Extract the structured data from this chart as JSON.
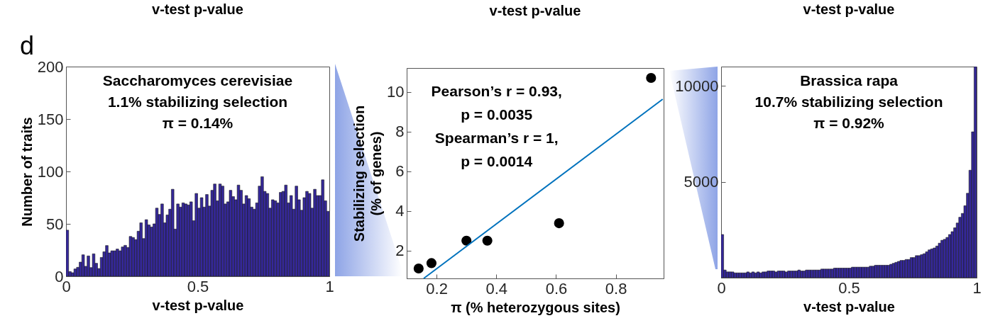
{
  "chart_data": [
    {
      "type": "histogram",
      "title": "v-test p-value",
      "subtitle": "d",
      "xlabel": "v-test p-value",
      "ylabel": "Number of traits",
      "color": "#35289a",
      "annotations": [
        "Saccharomyces cerevisiae",
        "1.1% stabilizing selection",
        "π = 0.14%"
      ],
      "bins": [
        0,
        0.01,
        0.02,
        0.03,
        0.04,
        0.05,
        0.06,
        0.07,
        0.08,
        0.09,
        0.1,
        0.11,
        0.12,
        0.13,
        0.14,
        0.15,
        0.16,
        0.17,
        0.18,
        0.19,
        0.2,
        0.21,
        0.22,
        0.23,
        0.24,
        0.25,
        0.26,
        0.27,
        0.28,
        0.29,
        0.3,
        0.31,
        0.32,
        0.33,
        0.34,
        0.35,
        0.36,
        0.37,
        0.38,
        0.39,
        0.4,
        0.41,
        0.42,
        0.43,
        0.44,
        0.45,
        0.46,
        0.47,
        0.48,
        0.49,
        0.5,
        0.51,
        0.52,
        0.53,
        0.54,
        0.55,
        0.56,
        0.57,
        0.58,
        0.59,
        0.6,
        0.61,
        0.62,
        0.63,
        0.64,
        0.65,
        0.66,
        0.67,
        0.68,
        0.69,
        0.7,
        0.71,
        0.72,
        0.73,
        0.74,
        0.75,
        0.76,
        0.77,
        0.78,
        0.79,
        0.8,
        0.81,
        0.82,
        0.83,
        0.84,
        0.85,
        0.86,
        0.87,
        0.88,
        0.89,
        0.9,
        0.91,
        0.92,
        0.93,
        0.94,
        0.95,
        0.96,
        0.97,
        0.98,
        0.99,
        1
      ],
      "values": [
        44,
        4.5,
        3.4,
        7,
        8.6,
        13.5,
        20.5,
        9.5,
        19.4,
        8.3,
        21.4,
        12.4,
        7.4,
        18,
        23.4,
        29.3,
        22.3,
        24.3,
        24.3,
        26,
        24.3,
        28,
        29.5,
        27.5,
        38,
        37,
        35,
        43,
        51,
        36,
        54,
        49,
        47,
        50,
        65,
        59,
        69,
        51,
        58.5,
        64,
        83,
        45,
        69,
        66,
        70,
        69,
        68,
        71,
        53,
        79,
        65,
        75,
        66,
        78,
        67,
        82,
        88,
        72,
        88,
        86,
        69,
        71,
        82,
        76,
        73,
        87,
        82,
        69,
        77,
        74,
        66,
        64,
        70,
        86,
        95,
        81,
        79,
        65,
        73,
        72,
        70,
        80,
        81,
        87,
        70,
        77,
        64,
        86,
        73,
        63,
        75,
        81,
        79,
        65,
        83,
        77,
        77,
        92,
        72,
        62
      ],
      "xlim": [
        0,
        1
      ],
      "xticks": [
        0,
        0.5,
        1
      ],
      "ylim": [
        0,
        200
      ],
      "yticks": [
        0,
        50,
        100,
        150,
        200
      ],
      "grid": false
    },
    {
      "type": "scatter",
      "title": "v-test p-value",
      "xlabel": "π (% heterozygous sites)",
      "ylabel": "Stabilizing selection\n(% of genes)",
      "annotations": [
        "Pearson’s r = 0.93,",
        "p = 0.0035",
        "Spearman’s r = 1,",
        "p = 0.0014"
      ],
      "series": [
        {
          "type": "scatter",
          "marker": "circle",
          "color": "#000000",
          "x": [
            0.14,
            0.183,
            0.3,
            0.37,
            0.61,
            0.918
          ],
          "values": [
            1.1,
            1.37,
            2.5,
            2.5,
            3.38,
            10.7
          ]
        },
        {
          "type": "line",
          "color": "#0072bd",
          "x": [
            0.157,
            0.957
          ],
          "values": [
            0.6,
            9.63
          ]
        }
      ],
      "xlim": [
        0.1,
        0.96
      ],
      "xticks": [
        0.2,
        0.4,
        0.6,
        0.8
      ],
      "ylim": [
        0.6,
        11.2
      ],
      "yticks": [
        2,
        4,
        6,
        8,
        10
      ],
      "grid": false
    },
    {
      "type": "histogram",
      "title": "v-test p-value",
      "xlabel": "v-test p-value",
      "color": "#35289a",
      "annotations": [
        "Brassica rapa",
        "10.7% stabilizing selection",
        "π = 0.92%"
      ],
      "bins": [
        0,
        0.01,
        0.02,
        0.03,
        0.04,
        0.05,
        0.06,
        0.07,
        0.08,
        0.09,
        0.1,
        0.11,
        0.12,
        0.13,
        0.14,
        0.15,
        0.16,
        0.17,
        0.18,
        0.19,
        0.2,
        0.21,
        0.22,
        0.23,
        0.24,
        0.25,
        0.26,
        0.27,
        0.28,
        0.29,
        0.3,
        0.31,
        0.32,
        0.33,
        0.34,
        0.35,
        0.36,
        0.37,
        0.38,
        0.39,
        0.4,
        0.41,
        0.42,
        0.43,
        0.44,
        0.45,
        0.46,
        0.47,
        0.48,
        0.49,
        0.5,
        0.51,
        0.52,
        0.53,
        0.54,
        0.55,
        0.56,
        0.57,
        0.58,
        0.59,
        0.6,
        0.61,
        0.62,
        0.63,
        0.64,
        0.65,
        0.66,
        0.67,
        0.68,
        0.69,
        0.7,
        0.71,
        0.72,
        0.73,
        0.74,
        0.75,
        0.76,
        0.77,
        0.78,
        0.79,
        0.8,
        0.81,
        0.82,
        0.83,
        0.84,
        0.85,
        0.86,
        0.87,
        0.88,
        0.89,
        0.9,
        0.91,
        0.92,
        0.93,
        0.94,
        0.95,
        0.96,
        0.97,
        0.98,
        0.99,
        1
      ],
      "values": [
        2250,
        400,
        300,
        300,
        300,
        250,
        250,
        250,
        250,
        250,
        300,
        250,
        300,
        250,
        300,
        250,
        300,
        300,
        350,
        350,
        350,
        300,
        350,
        350,
        350,
        300,
        350,
        350,
        350,
        350,
        400,
        350,
        350,
        400,
        400,
        400,
        400,
        400,
        400,
        450,
        450,
        450,
        450,
        450,
        500,
        500,
        500,
        500,
        500,
        500,
        500,
        550,
        550,
        550,
        550,
        550,
        550,
        550,
        600,
        600,
        650,
        650,
        650,
        650,
        650,
        650,
        700,
        750,
        800,
        850,
        900,
        900,
        950,
        950,
        1050,
        1050,
        1150,
        1150,
        1200,
        1250,
        1350,
        1450,
        1500,
        1550,
        1650,
        1800,
        1950,
        2000,
        2100,
        2250,
        2400,
        2600,
        2850,
        3150,
        3350,
        3750,
        4400,
        5600,
        7600,
        11000
      ],
      "xlim": [
        0,
        1
      ],
      "xticks": [
        0,
        0.5,
        1
      ],
      "ylim": [
        0,
        11000
      ],
      "yticks": [
        5000,
        10000
      ],
      "grid": false
    }
  ]
}
